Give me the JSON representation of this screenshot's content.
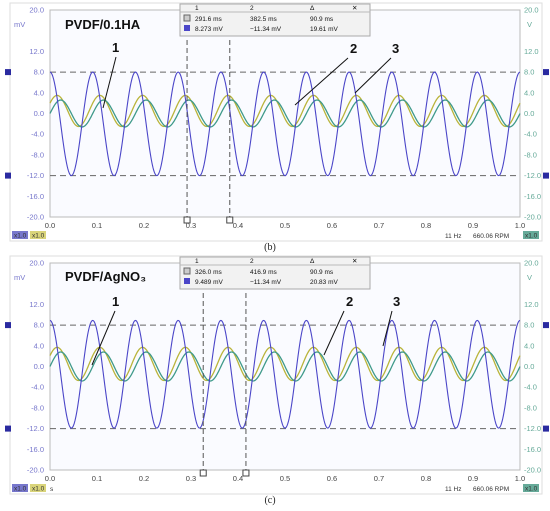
{
  "colors": {
    "channel_a": "#4b46c8",
    "channel_b": "#b9b43a",
    "channel_c": "#3f9a8a",
    "cursor": "#555555",
    "grid_border": "#9a9a9a"
  },
  "shared": {
    "y_left_unit": "mV",
    "y_right_unit": "V",
    "y_left_ticks": [
      "20.0",
      "12.0",
      "8.0",
      "4.0",
      "0.0",
      "-4.0",
      "-8.0",
      "-12.0",
      "-16.0",
      "-20.0"
    ],
    "y_right_ticks": [
      "20.0",
      "12.0",
      "8.0",
      "4.0",
      "0.0",
      "-4.0",
      "-8.0",
      "-12.0",
      "-16.0",
      "-20.0"
    ],
    "x_ticks": [
      "0.0",
      "0.1",
      "0.2",
      "0.3",
      "0.4",
      "0.5",
      "0.6",
      "0.7",
      "0.8",
      "0.9",
      "1.0"
    ],
    "x_unit": "s",
    "footer_status_a": "x1.0",
    "footer_status_b": "x1.0",
    "footer_freq": "11 Hz",
    "footer_rpm": "660.06 RPM",
    "footer_right": "x1.0",
    "callout_1": "1",
    "callout_2": "2",
    "callout_3": "3",
    "meas_head_1": "1",
    "meas_head_2": "2",
    "meas_head_3": "Δ"
  },
  "chart_data": [
    {
      "type": "line",
      "panel_caption": "(b)",
      "title": "PVDF/0.1HA",
      "xlabel": "s",
      "ylabel_left": "mV",
      "ylabel_right": "V",
      "xlim": [
        0.0,
        1.0
      ],
      "ylim": [
        -20.0,
        20.0
      ],
      "cursors_x": [
        0.2916,
        0.3825
      ],
      "measurements": {
        "row1": [
          "291.6 ms",
          "382.5 ms",
          "90.9 ms"
        ],
        "row2": [
          "8.273 mV",
          "−11.34 mV",
          "19.61 mV"
        ]
      },
      "series": [
        {
          "label": "1",
          "waveform": "sine",
          "frequency_hz": 11,
          "amplitude": 3.0,
          "offset": 0.5,
          "phase_deg": 30
        },
        {
          "label": "2",
          "waveform": "sine",
          "frequency_hz": 11,
          "amplitude": 2.6,
          "offset": 0.0,
          "phase_deg": 0
        },
        {
          "label": "3",
          "waveform": "sine",
          "frequency_hz": 11,
          "amplitude": 10.0,
          "offset": -2.0,
          "phase_deg": 90
        }
      ]
    },
    {
      "type": "line",
      "panel_caption": "(c)",
      "title": "PVDF/AgNO₃",
      "xlabel": "s",
      "ylabel_left": "mV",
      "ylabel_right": "V",
      "xlim": [
        0.0,
        1.0
      ],
      "ylim": [
        -20.0,
        20.0
      ],
      "cursors_x": [
        0.326,
        0.4169
      ],
      "measurements": {
        "row1": [
          "326.0 ms",
          "416.9 ms",
          "90.9 ms"
        ],
        "row2": [
          "9.489 mV",
          "−11.34 mV",
          "20.83 mV"
        ]
      },
      "series": [
        {
          "label": "1",
          "waveform": "sine",
          "frequency_hz": 11,
          "amplitude": 3.2,
          "offset": 0.5,
          "phase_deg": 30
        },
        {
          "label": "2",
          "waveform": "sine",
          "frequency_hz": 11,
          "amplitude": 2.8,
          "offset": 0.0,
          "phase_deg": 0
        },
        {
          "label": "3",
          "waveform": "sine",
          "frequency_hz": 11,
          "amplitude": 10.4,
          "offset": -1.5,
          "phase_deg": 90
        }
      ]
    }
  ]
}
